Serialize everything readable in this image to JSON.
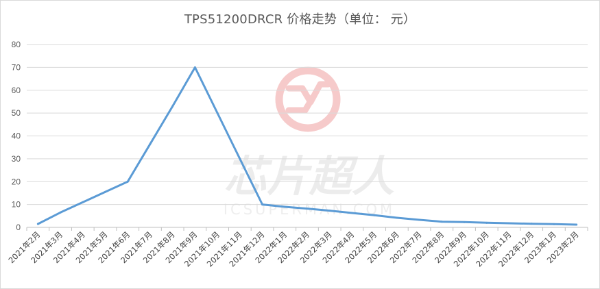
{
  "chart_data": {
    "type": "line",
    "title": "TPS51200DRCR 价格走势（单位： 元）",
    "categories": [
      "2021年2月",
      "2021年3月",
      "2021年4月",
      "2021年5月",
      "2021年6月",
      "2021年7月",
      "2021年8月",
      "2021年9月",
      "2021年10月",
      "2021年11月",
      "2021年12月",
      "2022年1月",
      "2022年2月",
      "2022年3月",
      "2022年4月",
      "2022年5月",
      "2022年6月",
      "2022年7月",
      "2022年8月",
      "2022年9月",
      "2022年10月",
      "2022年11月",
      "2022年12月",
      "2023年1月",
      "2023年2月"
    ],
    "series": [
      {
        "values": [
          1.5,
          6.5,
          11,
          15.5,
          20,
          36.5,
          53,
          70,
          50,
          30,
          10,
          9,
          8.2,
          7.3,
          6.3,
          5.3,
          4.2,
          3.3,
          2.5,
          2.3,
          2.0,
          1.8,
          1.6,
          1.4,
          1.2
        ]
      }
    ],
    "xlabel": "",
    "ylabel": "",
    "ylim": [
      0,
      80
    ],
    "yticks": [
      "0",
      "10",
      "20",
      "30",
      "40",
      "50",
      "60",
      "70",
      "80"
    ],
    "grid": true,
    "line_color": "#5b9bd5"
  },
  "watermark": {
    "main": "芯片超人",
    "sub": "ICSUPERMAN.COM",
    "logo_color": "#f4c7c7"
  }
}
